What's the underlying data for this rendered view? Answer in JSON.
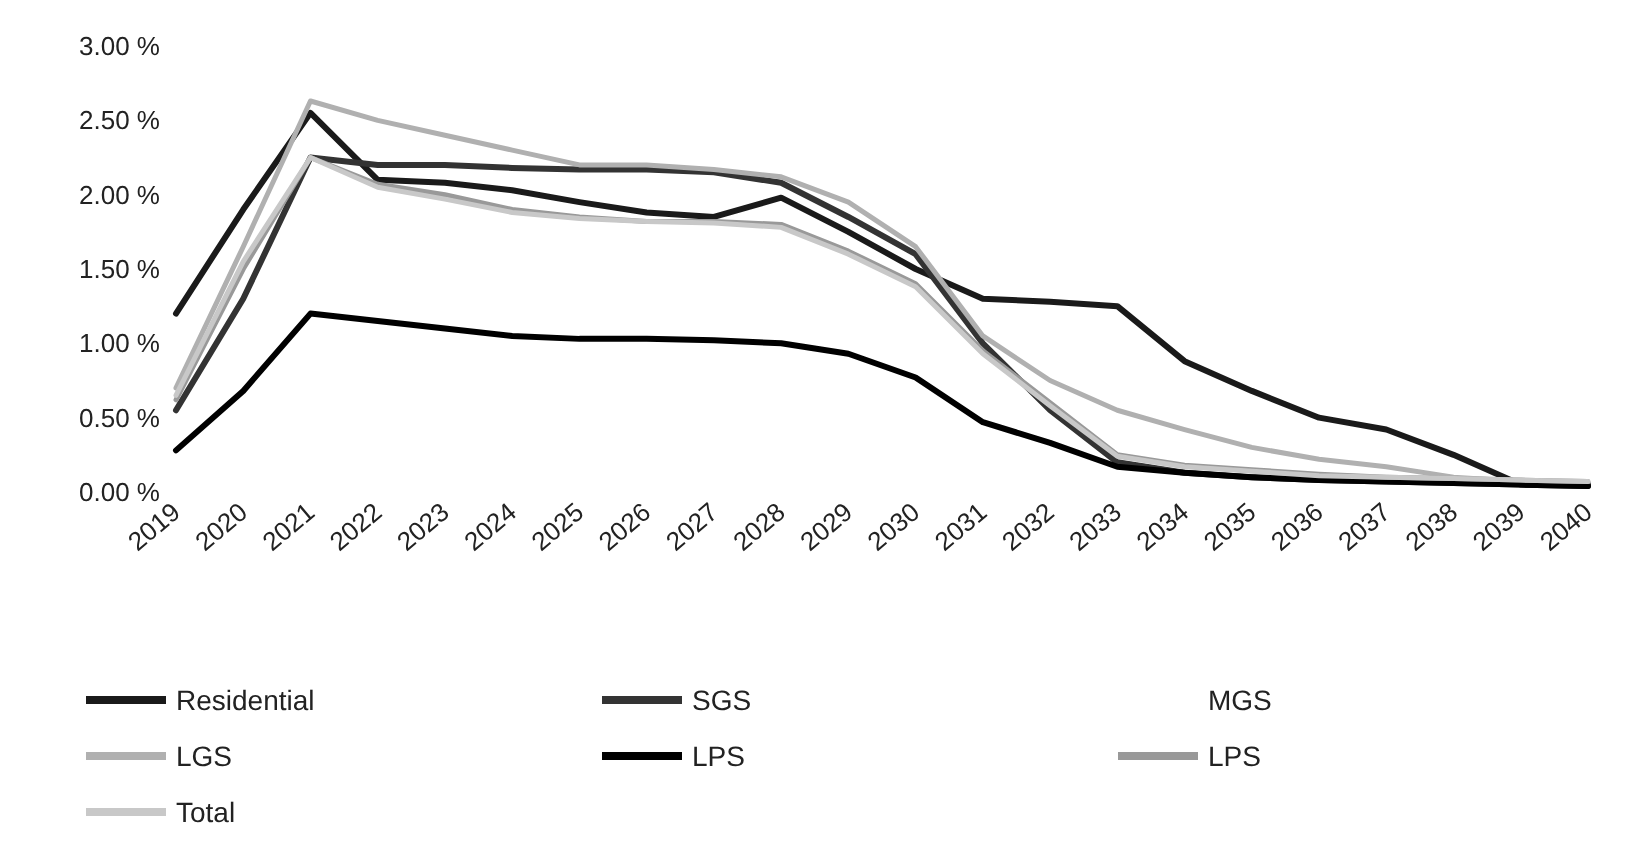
{
  "chart_data": {
    "type": "line",
    "categories": [
      "2019",
      "2020",
      "2021",
      "2022",
      "2023",
      "2024",
      "2025",
      "2026",
      "2027",
      "2028",
      "2029",
      "2030",
      "2031",
      "2032",
      "2033",
      "2034",
      "2035",
      "2036",
      "2037",
      "2038",
      "2039",
      "2040"
    ],
    "ylim": [
      0,
      3
    ],
    "yticks": [
      {
        "value": 0,
        "label": "0.00 %"
      },
      {
        "value": 0.5,
        "label": "0.50 %"
      },
      {
        "value": 1,
        "label": "1.00 %"
      },
      {
        "value": 1.5,
        "label": "1.50 %"
      },
      {
        "value": 2,
        "label": "2.00 %"
      },
      {
        "value": 2.5,
        "label": "2.50 %"
      },
      {
        "value": 3,
        "label": "3.00 %"
      }
    ],
    "grid": false,
    "legend": "bottom",
    "marker": "none",
    "line_style": "solid",
    "series": [
      {
        "name": "Residential",
        "color": "#1a1a1a",
        "values": [
          1.2,
          1.9,
          2.55,
          2.1,
          2.08,
          2.03,
          1.95,
          1.88,
          1.85,
          1.98,
          1.75,
          1.5,
          1.3,
          1.28,
          1.25,
          0.88,
          0.68,
          0.5,
          0.42,
          0.25,
          0.05,
          0.04
        ]
      },
      {
        "name": "SGS",
        "color": "#333333",
        "values": [
          0.55,
          1.3,
          2.25,
          2.2,
          2.2,
          2.18,
          2.17,
          2.17,
          2.15,
          2.08,
          1.85,
          1.6,
          1.0,
          0.55,
          0.2,
          0.13,
          0.1,
          0.08,
          0.07,
          0.06,
          0.05,
          0.05
        ]
      },
      {
        "name": "MGS",
        "values": [
          null,
          null,
          null,
          null,
          null,
          null,
          null,
          null,
          null,
          null,
          null,
          null,
          null,
          null,
          null,
          null,
          null,
          null,
          null,
          null,
          null,
          null
        ]
      },
      {
        "name": "LGS",
        "color": "#b0b0b0",
        "values": [
          0.7,
          1.65,
          2.63,
          2.5,
          2.4,
          2.3,
          2.2,
          2.2,
          2.17,
          2.12,
          1.95,
          1.65,
          1.05,
          0.75,
          0.55,
          0.42,
          0.3,
          0.22,
          0.17,
          0.1,
          0.07,
          0.06
        ]
      },
      {
        "name": "LPS",
        "color": "#000000",
        "values": [
          0.28,
          0.68,
          1.2,
          1.15,
          1.1,
          1.05,
          1.03,
          1.03,
          1.02,
          1.0,
          0.93,
          0.77,
          0.47,
          0.33,
          0.17,
          0.13,
          0.1,
          0.08,
          0.07,
          0.06,
          0.05,
          0.04
        ]
      },
      {
        "name": "LPS",
        "color": "#999999",
        "values": [
          0.62,
          1.5,
          2.25,
          2.07,
          2.0,
          1.9,
          1.85,
          1.82,
          1.82,
          1.8,
          1.62,
          1.4,
          0.95,
          0.6,
          0.25,
          0.18,
          0.15,
          0.12,
          0.1,
          0.09,
          0.08,
          0.07
        ]
      },
      {
        "name": "Total",
        "color": "#c8c8c8",
        "values": [
          0.65,
          1.55,
          2.25,
          2.05,
          1.97,
          1.88,
          1.84,
          1.82,
          1.81,
          1.78,
          1.6,
          1.38,
          0.93,
          0.58,
          0.24,
          0.17,
          0.14,
          0.11,
          0.1,
          0.09,
          0.08,
          0.07
        ]
      }
    ]
  }
}
